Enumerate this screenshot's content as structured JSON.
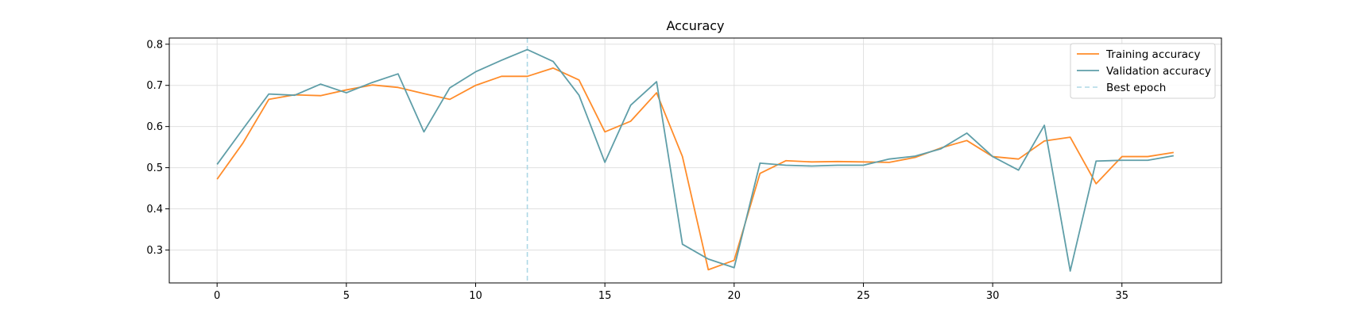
{
  "chart_data": {
    "type": "line",
    "title": "Accuracy",
    "xlabel": "",
    "ylabel": "",
    "xlim": [
      -1.85,
      38.85
    ],
    "ylim": [
      0.22,
      0.815
    ],
    "xticks": [
      0,
      5,
      10,
      15,
      20,
      25,
      30,
      35
    ],
    "yticks": [
      0.3,
      0.4,
      0.5,
      0.6,
      0.7,
      0.8
    ],
    "grid": true,
    "legend_position": "top-right",
    "x": [
      0,
      1,
      2,
      3,
      4,
      5,
      6,
      7,
      8,
      9,
      10,
      11,
      12,
      13,
      14,
      15,
      16,
      17,
      18,
      19,
      20,
      21,
      22,
      23,
      24,
      25,
      26,
      27,
      28,
      29,
      30,
      31,
      32,
      33,
      34,
      35,
      36,
      37
    ],
    "series": [
      {
        "name": "Training accuracy",
        "color": "#ff8c2a",
        "values": [
          0.472,
          0.56,
          0.666,
          0.677,
          0.675,
          0.689,
          0.701,
          0.695,
          0.68,
          0.666,
          0.7,
          0.722,
          0.722,
          0.742,
          0.713,
          0.587,
          0.613,
          0.682,
          0.527,
          0.252,
          0.275,
          0.486,
          0.517,
          0.514,
          0.515,
          0.514,
          0.513,
          0.525,
          0.548,
          0.566,
          0.527,
          0.521,
          0.565,
          0.574,
          0.461,
          0.527,
          0.527,
          0.537
        ]
      },
      {
        "name": "Validation accuracy",
        "color": "#5f9ea8",
        "values": [
          0.508,
          0.594,
          0.679,
          0.676,
          0.703,
          0.682,
          0.707,
          0.728,
          0.587,
          0.694,
          0.733,
          0.761,
          0.787,
          0.758,
          0.676,
          0.513,
          0.652,
          0.709,
          0.314,
          0.278,
          0.257,
          0.511,
          0.506,
          0.504,
          0.506,
          0.506,
          0.521,
          0.528,
          0.546,
          0.584,
          0.527,
          0.494,
          0.603,
          0.249,
          0.516,
          0.518,
          0.518,
          0.529
        ]
      }
    ],
    "best_epoch": {
      "name": "Best epoch",
      "x": 12,
      "color": "#add8e6"
    }
  }
}
